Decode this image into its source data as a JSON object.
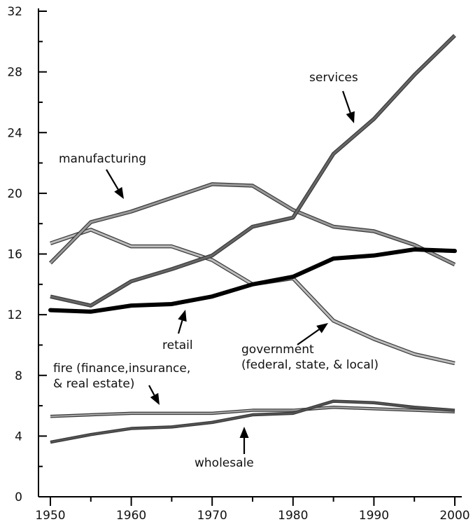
{
  "chart_data": {
    "type": "line",
    "x": [
      1950,
      1955,
      1960,
      1965,
      1970,
      1975,
      1980,
      1985,
      1990,
      1995,
      2000
    ],
    "xlim": [
      1950,
      2000
    ],
    "ylim": [
      0,
      32
    ],
    "x_ticks": [
      "1950",
      "1960",
      "1970",
      "1980",
      "1990",
      "2000"
    ],
    "y_ticks": [
      "0",
      "4",
      "8",
      "12",
      "16",
      "20",
      "24",
      "28",
      "32"
    ],
    "grid": false,
    "series": [
      {
        "name": "services",
        "color": "#666666",
        "values": [
          13.2,
          12.6,
          14.2,
          15.0,
          15.9,
          17.8,
          18.4,
          22.6,
          24.9,
          27.8,
          30.4
        ]
      },
      {
        "name": "manufacturing",
        "color": "#9a9a9a",
        "values": [
          15.4,
          18.1,
          18.8,
          19.7,
          20.6,
          20.5,
          18.9,
          17.8,
          17.5,
          16.6,
          15.3
        ]
      },
      {
        "name": "retail",
        "color": "#000000",
        "values": [
          12.3,
          12.2,
          12.6,
          12.7,
          13.2,
          14.0,
          14.5,
          15.7,
          15.9,
          16.3,
          16.2
        ]
      },
      {
        "name": "government",
        "color": "#bcbcbc",
        "values": [
          16.7,
          17.6,
          16.5,
          16.5,
          15.6,
          14.0,
          14.4,
          11.6,
          10.4,
          9.4,
          8.8
        ]
      },
      {
        "name": "fire",
        "color": "#aaaaaa",
        "values": [
          5.3,
          5.4,
          5.5,
          5.5,
          5.5,
          5.7,
          5.7,
          5.9,
          5.8,
          5.7,
          5.6
        ]
      },
      {
        "name": "wholesale",
        "color": "#555555",
        "values": [
          3.6,
          4.1,
          4.5,
          4.6,
          4.9,
          5.4,
          5.5,
          6.3,
          6.2,
          5.9,
          5.7
        ]
      }
    ],
    "annotations": [
      {
        "key": "services",
        "lines": [
          "services"
        ]
      },
      {
        "key": "manufacturing",
        "lines": [
          "manufacturing"
        ]
      },
      {
        "key": "retail",
        "lines": [
          "retail"
        ]
      },
      {
        "key": "government",
        "lines": [
          "government",
          "(federal, state, & local)"
        ]
      },
      {
        "key": "fire",
        "lines": [
          "fire (finance,insurance,",
          "& real estate)"
        ]
      },
      {
        "key": "wholesale",
        "lines": [
          "wholesale"
        ]
      }
    ]
  }
}
